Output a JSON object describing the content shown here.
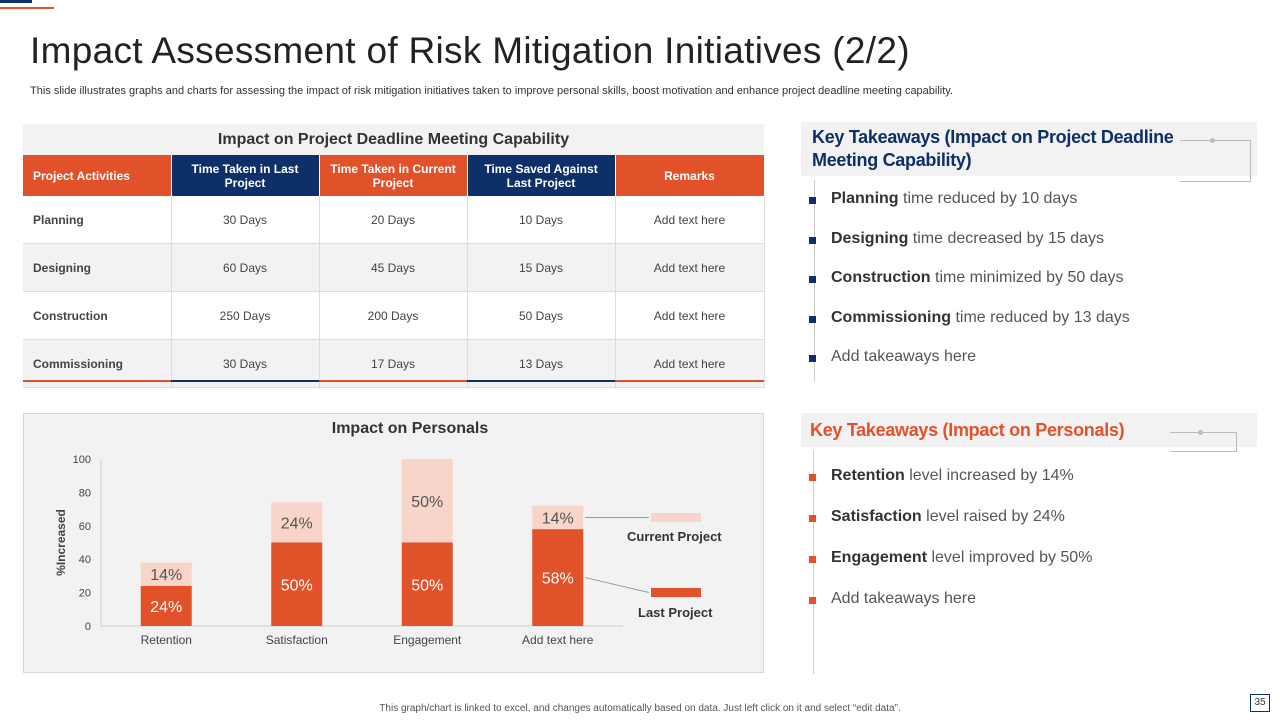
{
  "slide": {
    "title": "Impact Assessment of Risk Mitigation Initiatives (2/2)",
    "subtitle": "This slide illustrates graphs and charts for assessing the impact of risk mitigation initiatives taken to improve personal skills, boost motivation and enhance project deadline meeting capability.",
    "footer": "This graph/chart is linked to excel, and changes automatically based on data. Just left click on it and select “edit data”.",
    "page_number": "35"
  },
  "colors": {
    "orange": "#e2522a",
    "light_orange": "#f9d4c8",
    "navy": "#0d3068",
    "panel": "#f2f2f2"
  },
  "table": {
    "title": "Impact on Project Deadline Meeting Capability",
    "headers": [
      "Project Activities",
      "Time Taken in Last Project",
      "Time Taken in Current Project",
      "Time Saved Against Last Project",
      "Remarks"
    ],
    "rows": [
      [
        "Planning",
        "30 Days",
        "20 Days",
        "10 Days",
        "Add text here"
      ],
      [
        "Designing",
        "60 Days",
        "45 Days",
        "15 Days",
        "Add text here"
      ],
      [
        "Construction",
        "250 Days",
        "200 Days",
        "50 Days",
        "Add text here"
      ],
      [
        "Commissioning",
        "30 Days",
        "17 Days",
        "13 Days",
        "Add text here"
      ]
    ]
  },
  "takeaways_deadline": {
    "title": "Key Takeaways (Impact on Project Deadline Meeting Capability)",
    "items": [
      {
        "bold": "Planning",
        "text": " time reduced by 10 days"
      },
      {
        "bold": "Designing",
        "text": " time decreased by 15 days"
      },
      {
        "bold": "Construction",
        "text": " time minimized by 50 days"
      },
      {
        "bold": "Commissioning",
        "text": " time reduced by 13 days"
      },
      {
        "bold": "",
        "text": "Add takeaways here"
      }
    ]
  },
  "takeaways_personals": {
    "title": "Key Takeaways (Impact on Personals)",
    "items": [
      {
        "bold": "Retention",
        "text": " level increased by 14%"
      },
      {
        "bold": "Satisfaction",
        "text": "  level raised by 24%"
      },
      {
        "bold": "Engagement",
        "text": " level improved by 50%"
      },
      {
        "bold": "",
        "text": "Add takeaways here"
      }
    ]
  },
  "chart_data": {
    "type": "bar",
    "stacked": true,
    "title": "Impact on Personals",
    "xlabel": "",
    "ylabel": "%Increased",
    "ylim": [
      0,
      100
    ],
    "yticks": [
      0,
      20,
      40,
      60,
      80,
      100
    ],
    "categories": [
      "Retention",
      "Satisfaction",
      "Engagement",
      "Add text here"
    ],
    "series": [
      {
        "name": "Last Project",
        "values": [
          24,
          50,
          50,
          58
        ],
        "labels": [
          "24%",
          "50%",
          "50%",
          "58%"
        ]
      },
      {
        "name": "Current Project",
        "values": [
          14,
          24,
          50,
          14
        ],
        "labels": [
          "14%",
          "24%",
          "50%",
          "14%"
        ]
      }
    ],
    "legend": [
      "Current Project",
      "Last Project"
    ],
    "legend_position": "right"
  }
}
